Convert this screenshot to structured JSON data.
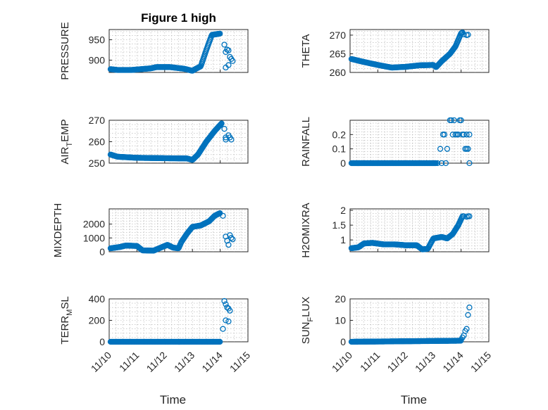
{
  "figure": {
    "title": "Figure 1 high",
    "xlabel": "Time"
  },
  "colors": {
    "marker": "#0072bd",
    "axis": "#262626",
    "grid": "#b0b0b0"
  },
  "xaxis": {
    "domain_days": [
      10,
      15
    ],
    "ticks": [
      {
        "v": 10,
        "label": "11/10"
      },
      {
        "v": 11,
        "label": "11/11"
      },
      {
        "v": 12,
        "label": "11/12"
      },
      {
        "v": 13,
        "label": "11/13"
      },
      {
        "v": 14,
        "label": "11/14"
      },
      {
        "v": 15,
        "label": "11/15"
      }
    ]
  },
  "chart_data": [
    {
      "type": "scatter",
      "ylabel": "PRESSURE",
      "title": "Figure 1 high",
      "ylim": [
        870,
        975
      ],
      "yticks": [
        900,
        950
      ],
      "series": [
        {
          "name": "PRESSURE",
          "dense_x": [
            10.05,
            14.0
          ],
          "knots": [
            [
              10.05,
              878
            ],
            [
              10.3,
              876
            ],
            [
              10.8,
              876
            ],
            [
              11.5,
              880
            ],
            [
              11.7,
              883
            ],
            [
              12.2,
              883
            ],
            [
              12.7,
              879
            ],
            [
              13.0,
              874
            ],
            [
              13.1,
              878
            ],
            [
              13.3,
              885
            ],
            [
              13.5,
              925
            ],
            [
              13.7,
              962
            ],
            [
              14.0,
              965
            ]
          ],
          "sparse": [
            [
              14.15,
              938
            ],
            [
              14.2,
              920
            ],
            [
              14.25,
              926
            ],
            [
              14.3,
              924
            ],
            [
              14.35,
              908
            ],
            [
              14.4,
              903
            ],
            [
              14.45,
              898
            ],
            [
              14.3,
              888
            ],
            [
              14.2,
              882
            ]
          ]
        }
      ]
    },
    {
      "type": "scatter",
      "ylabel": "THETA",
      "ylim": [
        260,
        271.5
      ],
      "yticks": [
        260,
        265,
        270
      ],
      "series": [
        {
          "name": "THETA",
          "dense_x": [
            10.05,
            14.05
          ],
          "knots": [
            [
              10.05,
              263.6
            ],
            [
              10.5,
              262.8
            ],
            [
              11.0,
              262
            ],
            [
              11.5,
              261.3
            ],
            [
              12.0,
              261.5
            ],
            [
              12.5,
              261.9
            ],
            [
              13.0,
              262
            ],
            [
              13.1,
              261.4
            ],
            [
              13.3,
              263
            ],
            [
              13.6,
              265
            ],
            [
              13.8,
              267
            ],
            [
              14.0,
              270.5
            ],
            [
              14.05,
              270.7
            ]
          ],
          "sparse": [
            [
              14.1,
              270.2
            ],
            [
              14.2,
              270
            ],
            [
              14.25,
              270.1
            ]
          ]
        }
      ]
    },
    {
      "type": "scatter",
      "ylabel": "AIR_TEMP",
      "ylim": [
        250,
        270
      ],
      "yticks": [
        250,
        260,
        270
      ],
      "series": [
        {
          "name": "AIR_TEMP",
          "dense_x": [
            10.05,
            14.05
          ],
          "knots": [
            [
              10.05,
              254
            ],
            [
              10.3,
              253
            ],
            [
              11.0,
              252.5
            ],
            [
              12.0,
              252.3
            ],
            [
              12.8,
              252.2
            ],
            [
              13.0,
              251.5
            ],
            [
              13.2,
              254
            ],
            [
              13.5,
              260
            ],
            [
              13.8,
              265
            ],
            [
              14.05,
              268.5
            ]
          ],
          "sparse": [
            [
              14.15,
              266
            ],
            [
              14.2,
              262
            ],
            [
              14.3,
              263
            ],
            [
              14.35,
              262
            ],
            [
              14.4,
              261
            ],
            [
              14.2,
              261
            ]
          ]
        }
      ]
    },
    {
      "type": "scatter",
      "ylabel": "RAINFALL",
      "ylim": [
        0,
        0.3
      ],
      "yticks": [
        0,
        0.1,
        0.2
      ],
      "series": [
        {
          "name": "RAINFALL",
          "dense_x": [
            10.05,
            13.1
          ],
          "knots": [
            [
              10.05,
              0
            ],
            [
              13.1,
              0
            ]
          ],
          "sparse": [
            [
              13.15,
              0
            ],
            [
              13.25,
              0.1
            ],
            [
              13.3,
              0
            ],
            [
              13.35,
              0.2
            ],
            [
              13.4,
              0.2
            ],
            [
              13.45,
              0
            ],
            [
              13.5,
              0.1
            ],
            [
              13.6,
              0.3
            ],
            [
              13.65,
              0.3
            ],
            [
              13.7,
              0.2
            ],
            [
              13.75,
              0.3
            ],
            [
              13.8,
              0.2
            ],
            [
              13.85,
              0.2
            ],
            [
              13.9,
              0.2
            ],
            [
              13.95,
              0.3
            ],
            [
              14.0,
              0.3
            ],
            [
              14.05,
              0.2
            ],
            [
              14.1,
              0.2
            ],
            [
              14.15,
              0.1
            ],
            [
              14.2,
              0.1
            ],
            [
              14.25,
              0.1
            ],
            [
              14.2,
              0.2
            ],
            [
              14.3,
              0.2
            ],
            [
              14.3,
              0
            ]
          ]
        }
      ]
    },
    {
      "type": "scatter",
      "ylabel": "MIXDEPTH",
      "ylim": [
        0,
        3100
      ],
      "yticks": [
        0,
        1000,
        2000
      ],
      "series": [
        {
          "name": "MIXDEPTH",
          "dense_x": [
            10.05,
            14.0
          ],
          "knots": [
            [
              10.05,
              250
            ],
            [
              10.4,
              350
            ],
            [
              10.6,
              450
            ],
            [
              11.0,
              420
            ],
            [
              11.2,
              100
            ],
            [
              11.6,
              80
            ],
            [
              11.8,
              250
            ],
            [
              12.1,
              500
            ],
            [
              12.3,
              300
            ],
            [
              12.5,
              250
            ],
            [
              12.6,
              700
            ],
            [
              12.8,
              1300
            ],
            [
              13.0,
              1800
            ],
            [
              13.3,
              1900
            ],
            [
              13.6,
              2200
            ],
            [
              13.8,
              2600
            ],
            [
              14.0,
              2800
            ]
          ],
          "sparse": [
            [
              14.1,
              2600
            ],
            [
              14.2,
              1100
            ],
            [
              14.25,
              800
            ],
            [
              14.3,
              500
            ],
            [
              14.35,
              1200
            ],
            [
              14.4,
              1000
            ],
            [
              14.45,
              900
            ]
          ]
        }
      ]
    },
    {
      "type": "scatter",
      "ylabel": "H2OMIXRA",
      "ylim": [
        0.6,
        2.05
      ],
      "yticks": [
        1,
        1.5,
        2
      ],
      "series": [
        {
          "name": "H2OMIXRA",
          "dense_x": [
            10.05,
            14.05
          ],
          "knots": [
            [
              10.05,
              0.72
            ],
            [
              10.3,
              0.75
            ],
            [
              10.5,
              0.88
            ],
            [
              10.8,
              0.9
            ],
            [
              11.2,
              0.85
            ],
            [
              11.6,
              0.85
            ],
            [
              12.0,
              0.82
            ],
            [
              12.4,
              0.82
            ],
            [
              12.6,
              0.68
            ],
            [
              12.8,
              0.7
            ],
            [
              13.0,
              1.05
            ],
            [
              13.3,
              1.1
            ],
            [
              13.5,
              1.05
            ],
            [
              13.7,
              1.2
            ],
            [
              13.9,
              1.5
            ],
            [
              14.05,
              1.8
            ]
          ],
          "sparse": [
            [
              14.1,
              1.8
            ],
            [
              14.2,
              1.78
            ],
            [
              14.25,
              1.8
            ],
            [
              14.3,
              1.8
            ]
          ]
        }
      ]
    },
    {
      "type": "scatter",
      "ylabel": "TERR_MSL",
      "ylim": [
        0,
        400
      ],
      "yticks": [
        0,
        200,
        400
      ],
      "series": [
        {
          "name": "TERR_MSL",
          "dense_x": [
            10.05,
            14.0
          ],
          "knots": [
            [
              10.05,
              0
            ],
            [
              14.0,
              0
            ]
          ],
          "sparse": [
            [
              14.1,
              120
            ],
            [
              14.15,
              380
            ],
            [
              14.2,
              350
            ],
            [
              14.25,
              320
            ],
            [
              14.3,
              310
            ],
            [
              14.35,
              290
            ],
            [
              14.2,
              200
            ],
            [
              14.3,
              190
            ]
          ]
        }
      ]
    },
    {
      "type": "scatter",
      "ylabel": "SUN_FLUX",
      "ylim": [
        0,
        20
      ],
      "yticks": [
        0,
        10,
        20
      ],
      "series": [
        {
          "name": "SUN_FLUX",
          "dense_x": [
            10.05,
            14.0
          ],
          "knots": [
            [
              10.05,
              0
            ],
            [
              14.0,
              0.5
            ]
          ],
          "sparse": [
            [
              14.0,
              1
            ],
            [
              14.05,
              2
            ],
            [
              14.1,
              3
            ],
            [
              14.15,
              5
            ],
            [
              14.2,
              6
            ],
            [
              14.25,
              12.5
            ],
            [
              14.3,
              16
            ]
          ]
        }
      ]
    }
  ]
}
